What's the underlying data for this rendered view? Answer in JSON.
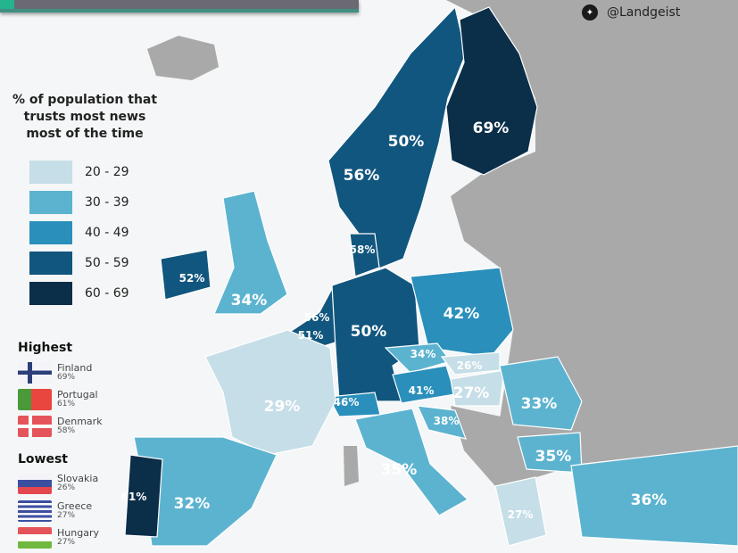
{
  "credit": "@Landgeist",
  "legend": {
    "title": "% of population that trusts most news most of the time",
    "bins": [
      {
        "label": "20 - 29",
        "color": "#c6dee7"
      },
      {
        "label": "30 - 39",
        "color": "#5cb3cf"
      },
      {
        "label": "40 - 49",
        "color": "#2a8fbb"
      },
      {
        "label": "50 - 59",
        "color": "#11567e"
      },
      {
        "label": "60 - 69",
        "color": "#0b2e49"
      }
    ]
  },
  "highest": {
    "title": "Highest",
    "items": [
      {
        "country": "Finland",
        "value": "69%"
      },
      {
        "country": "Portugal",
        "value": "61%"
      },
      {
        "country": "Denmark",
        "value": "58%"
      }
    ]
  },
  "lowest": {
    "title": "Lowest",
    "items": [
      {
        "country": "Slovakia",
        "value": "26%"
      },
      {
        "country": "Greece",
        "value": "27%"
      },
      {
        "country": "Hungary",
        "value": "27%"
      }
    ]
  },
  "values": {
    "finland": "69%",
    "sweden": "50%",
    "norway": "56%",
    "denmark": "58%",
    "ireland": "52%",
    "uk": "34%",
    "netherlands": "56%",
    "belgium": "51%",
    "germany": "50%",
    "poland": "42%",
    "czechia": "34%",
    "slovakia": "26%",
    "austria": "41%",
    "hungary": "27%",
    "switzerland": "46%",
    "france": "29%",
    "croatia": "38%",
    "romania": "33%",
    "bulgaria": "35%",
    "italy": "35%",
    "spain": "32%",
    "portugal": "61%",
    "greece": "27%",
    "turkey": "36%"
  }
}
